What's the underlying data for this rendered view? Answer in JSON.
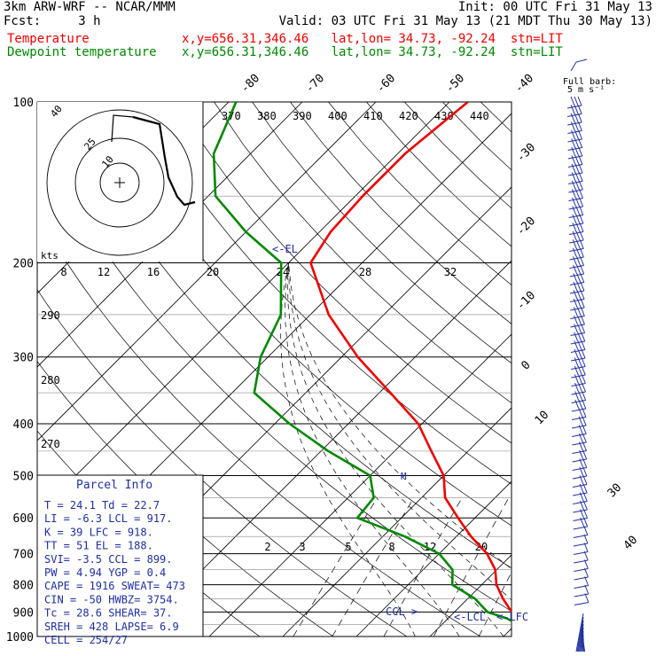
{
  "header": {
    "model": "3km ARW-WRF -- NCAR/MMM",
    "init": "Init: 00 UTC Fri 31 May 13",
    "fcst": "Fcst:     3 h",
    "valid": "Valid: 03 UTC Fri 31 May 13 (21 MDT Thu 30 May 13)",
    "temperature_label": "Temperature",
    "dewpoint_label": "Dewpoint temperature",
    "temperature_loc": "x,y=656.31,346.46   lat,lon= 34.73, -92.24  stn=LIT",
    "dewpoint_loc": "x,y=656.31,346.46   lat,lon= 34.73, -92.24  stn=LIT"
  },
  "colors": {
    "temperature": "#ee0000",
    "dewpoint": "#008800",
    "parcel_text": "#1f2f9f",
    "grid": "#000000"
  },
  "chart_data": {
    "type": "line",
    "title": "",
    "ylabel": "",
    "xlabel": "",
    "ylim": [
      1000,
      100
    ],
    "y_scale": "log",
    "pressure_ticks": [
      "100",
      "200",
      "300",
      "400",
      "500",
      "600",
      "700",
      "800",
      "900",
      "1000"
    ],
    "isotherm_labels": [
      "-80",
      "-70",
      "-60",
      "-50",
      "-40",
      "-30",
      "-20",
      "-10",
      "0",
      "10",
      "30",
      "40"
    ],
    "theta_labels": [
      "370",
      "380",
      "390",
      "400",
      "410",
      "420",
      "430",
      "440"
    ],
    "theta_left_labels": [
      "290",
      "280",
      "270"
    ],
    "mixing_ratio_labels": [
      "2",
      "3",
      "5",
      "8",
      "12",
      "20"
    ],
    "mixing_ratio_top_labels": [
      "8",
      "12",
      "16",
      "20",
      "24",
      "28",
      "32"
    ],
    "series": [
      {
        "name": "Temperature",
        "p": [
          1000,
          975,
          950,
          925,
          900,
          850,
          800,
          750,
          700,
          650,
          600,
          550,
          500,
          450,
          400,
          350,
          300,
          250,
          200,
          175,
          150,
          125,
          100
        ],
        "t": [
          25.0,
          24.1,
          21.5,
          19.3,
          17.8,
          14.8,
          12.0,
          9.8,
          6.5,
          2.0,
          -2.3,
          -6.8,
          -10.0,
          -15.0,
          -20.5,
          -28.5,
          -37.8,
          -47.5,
          -57.0,
          -58.5,
          -59.0,
          -59.0,
          -57.5
        ]
      },
      {
        "name": "Dewpoint temperature",
        "p": [
          1000,
          975,
          950,
          925,
          900,
          850,
          800,
          750,
          700,
          650,
          600,
          550,
          500,
          450,
          400,
          350,
          300,
          250,
          200,
          175,
          150,
          125,
          100
        ],
        "t": [
          22.7,
          22.7,
          20.4,
          18.0,
          14.5,
          11.0,
          6.0,
          4.0,
          0.0,
          -7.0,
          -16.0,
          -16.5,
          -20.0,
          -29.0,
          -38.0,
          -47.0,
          -51.0,
          -54.0,
          -61.0,
          -70.0,
          -79.0,
          -85.0,
          -89.0
        ]
      }
    ],
    "annotations": [
      "<-EL",
      "CCL->",
      "<-LCL",
      "<-LFC"
    ],
    "wind_barbs_label": "Full barb:",
    "wind_barbs_unit": "5 m s⁻¹",
    "hodograph": {
      "unit_label": "kts",
      "ring_labels": [
        "10",
        "25",
        "40"
      ],
      "points": [
        [
          0,
          0
        ],
        [
          4,
          18
        ],
        [
          6,
          24
        ],
        [
          9,
          30
        ],
        [
          12,
          38
        ],
        [
          18,
          46
        ]
      ]
    }
  },
  "parcel_info": {
    "title": "Parcel Info",
    "rows": [
      "T  =     24.1  Td =   22.7",
      "LI =     -6.3  LCL =  917.",
      "K  =      39   LFC =  918.",
      "TT =      51   EL  =  188.",
      "SVI=     -3.5  CCL =  899.",
      "PW =     4.94  YGP =   0.4",
      "CAPE =   1916  SWEAT=  473",
      "CIN  =    -50  HWBZ= 3754.",
      "Tc =     28.6  SHEAR=  37.",
      "SREH =    428  LAPSE=  6.9",
      "CELL = 254/27"
    ]
  }
}
